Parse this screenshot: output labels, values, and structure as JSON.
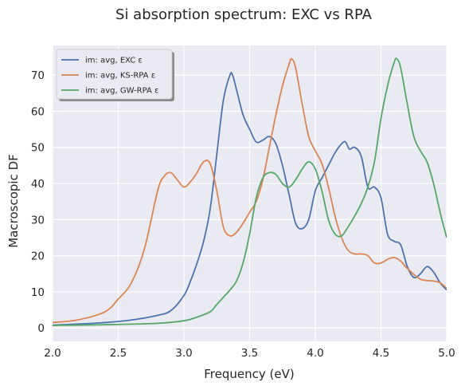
{
  "chart_data": {
    "type": "line",
    "title": "Si absorption spectrum: EXC vs RPA",
    "xlabel": "Frequency (eV)",
    "ylabel": "Macroscopic DF",
    "xlim": [
      2.0,
      5.0
    ],
    "ylim": [
      -3.7,
      78.2
    ],
    "xticks": [
      2.0,
      2.5,
      3.0,
      3.5,
      4.0,
      4.5,
      5.0
    ],
    "xtick_labels": [
      "2.0",
      "2.5",
      "3.0",
      "3.5",
      "4.0",
      "4.5",
      "5.0"
    ],
    "yticks": [
      0,
      10,
      20,
      30,
      40,
      50,
      60,
      70
    ],
    "ytick_labels": [
      "0",
      "10",
      "20",
      "30",
      "40",
      "50",
      "60",
      "70"
    ],
    "grid": true,
    "legend_position": "top-left",
    "background": "#eaeaf2",
    "series": [
      {
        "name": "im: avg, EXC ε",
        "color": "#4c72b0",
        "points": [
          [
            2.0,
            0.8
          ],
          [
            2.2,
            1.1
          ],
          [
            2.4,
            1.5
          ],
          [
            2.6,
            2.2
          ],
          [
            2.8,
            3.5
          ],
          [
            2.9,
            4.8
          ],
          [
            3.0,
            9.0
          ],
          [
            3.05,
            13.0
          ],
          [
            3.1,
            18.0
          ],
          [
            3.15,
            24.0
          ],
          [
            3.2,
            33.0
          ],
          [
            3.25,
            48.0
          ],
          [
            3.3,
            63.0
          ],
          [
            3.35,
            70.0
          ],
          [
            3.37,
            70.0
          ],
          [
            3.4,
            66.0
          ],
          [
            3.45,
            59.0
          ],
          [
            3.5,
            55.0
          ],
          [
            3.55,
            51.5
          ],
          [
            3.6,
            52.0
          ],
          [
            3.65,
            53.0
          ],
          [
            3.7,
            51.0
          ],
          [
            3.75,
            45.0
          ],
          [
            3.8,
            37.0
          ],
          [
            3.85,
            29.0
          ],
          [
            3.9,
            27.5
          ],
          [
            3.95,
            30.0
          ],
          [
            4.0,
            38.0
          ],
          [
            4.05,
            41.5
          ],
          [
            4.1,
            45.0
          ],
          [
            4.15,
            48.5
          ],
          [
            4.2,
            51.0
          ],
          [
            4.23,
            51.5
          ],
          [
            4.26,
            49.5
          ],
          [
            4.3,
            50.0
          ],
          [
            4.35,
            47.5
          ],
          [
            4.4,
            39.0
          ],
          [
            4.45,
            39.0
          ],
          [
            4.5,
            36.0
          ],
          [
            4.55,
            26.0
          ],
          [
            4.6,
            24.0
          ],
          [
            4.65,
            23.0
          ],
          [
            4.7,
            17.0
          ],
          [
            4.75,
            14.0
          ],
          [
            4.8,
            15.0
          ],
          [
            4.85,
            17.0
          ],
          [
            4.9,
            15.5
          ],
          [
            4.95,
            12.5
          ],
          [
            5.0,
            10.5
          ]
        ]
      },
      {
        "name": "im: avg, KS-RPA ε",
        "color": "#dd8452",
        "points": [
          [
            2.0,
            1.5
          ],
          [
            2.2,
            2.3
          ],
          [
            2.4,
            4.5
          ],
          [
            2.5,
            8.0
          ],
          [
            2.6,
            12.5
          ],
          [
            2.7,
            22.0
          ],
          [
            2.8,
            38.0
          ],
          [
            2.85,
            42.0
          ],
          [
            2.9,
            43.0
          ],
          [
            2.95,
            41.0
          ],
          [
            3.0,
            39.0
          ],
          [
            3.05,
            40.5
          ],
          [
            3.1,
            43.0
          ],
          [
            3.15,
            46.0
          ],
          [
            3.2,
            45.5
          ],
          [
            3.25,
            38.0
          ],
          [
            3.3,
            28.0
          ],
          [
            3.35,
            25.5
          ],
          [
            3.4,
            26.5
          ],
          [
            3.45,
            29.0
          ],
          [
            3.5,
            32.0
          ],
          [
            3.55,
            35.0
          ],
          [
            3.6,
            41.0
          ],
          [
            3.65,
            50.0
          ],
          [
            3.7,
            59.0
          ],
          [
            3.75,
            67.0
          ],
          [
            3.8,
            73.0
          ],
          [
            3.82,
            74.5
          ],
          [
            3.85,
            72.0
          ],
          [
            3.9,
            62.0
          ],
          [
            3.95,
            53.0
          ],
          [
            4.0,
            49.0
          ],
          [
            4.05,
            45.5
          ],
          [
            4.1,
            39.0
          ],
          [
            4.15,
            31.0
          ],
          [
            4.2,
            25.0
          ],
          [
            4.25,
            21.5
          ],
          [
            4.3,
            20.5
          ],
          [
            4.35,
            20.5
          ],
          [
            4.4,
            20.0
          ],
          [
            4.45,
            18.0
          ],
          [
            4.5,
            18.0
          ],
          [
            4.55,
            19.0
          ],
          [
            4.6,
            19.5
          ],
          [
            4.65,
            18.5
          ],
          [
            4.7,
            16.5
          ],
          [
            4.8,
            13.5
          ],
          [
            4.9,
            13.0
          ],
          [
            4.95,
            12.5
          ],
          [
            5.0,
            11.0
          ]
        ]
      },
      {
        "name": "im: avg, GW-RPA ε",
        "color": "#55a868",
        "points": [
          [
            2.0,
            0.7
          ],
          [
            2.4,
            0.9
          ],
          [
            2.8,
            1.3
          ],
          [
            3.0,
            2.0
          ],
          [
            3.1,
            3.0
          ],
          [
            3.2,
            4.5
          ],
          [
            3.25,
            6.5
          ],
          [
            3.3,
            8.5
          ],
          [
            3.35,
            10.5
          ],
          [
            3.4,
            13.0
          ],
          [
            3.45,
            18.0
          ],
          [
            3.5,
            26.0
          ],
          [
            3.55,
            36.0
          ],
          [
            3.6,
            41.5
          ],
          [
            3.65,
            43.0
          ],
          [
            3.7,
            42.5
          ],
          [
            3.75,
            40.0
          ],
          [
            3.8,
            39.0
          ],
          [
            3.85,
            41.0
          ],
          [
            3.9,
            44.0
          ],
          [
            3.95,
            46.0
          ],
          [
            4.0,
            44.0
          ],
          [
            4.05,
            38.0
          ],
          [
            4.1,
            30.0
          ],
          [
            4.15,
            26.0
          ],
          [
            4.2,
            25.5
          ],
          [
            4.25,
            28.0
          ],
          [
            4.3,
            31.0
          ],
          [
            4.35,
            34.5
          ],
          [
            4.4,
            39.0
          ],
          [
            4.45,
            46.0
          ],
          [
            4.5,
            58.0
          ],
          [
            4.55,
            67.0
          ],
          [
            4.6,
            73.5
          ],
          [
            4.62,
            74.5
          ],
          [
            4.65,
            72.0
          ],
          [
            4.7,
            62.0
          ],
          [
            4.75,
            53.0
          ],
          [
            4.8,
            49.0
          ],
          [
            4.85,
            46.0
          ],
          [
            4.9,
            40.0
          ],
          [
            4.95,
            32.0
          ],
          [
            5.0,
            25.0
          ]
        ]
      }
    ]
  }
}
